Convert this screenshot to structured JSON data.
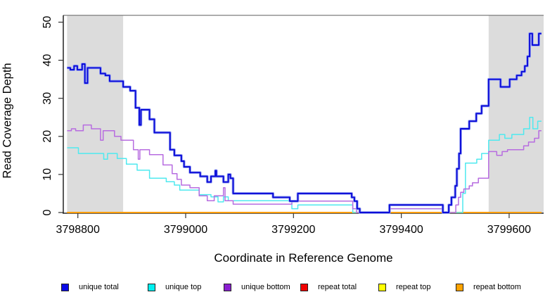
{
  "chart_data": {
    "type": "line",
    "subtype": "step-coverage",
    "title": "",
    "xlabel": "Coordinate in Reference Genome",
    "ylabel": "Read Coverage Depth",
    "xlim": [
      3798773,
      3799664
    ],
    "ylim": [
      0,
      52
    ],
    "grid": "off",
    "x_ticks": [
      3798800,
      3799000,
      3799200,
      3799400,
      3799600
    ],
    "y_ticks": [
      0,
      10,
      20,
      30,
      40,
      50
    ],
    "shaded_regions": [
      {
        "name": "masked-region-left",
        "x0": 3798780,
        "x1": 3798884,
        "color": "#dcdcdc"
      },
      {
        "name": "masked-region-right",
        "x0": 3799562,
        "x1": 3799664,
        "color": "#dcdcdc"
      }
    ],
    "legend_position": "bottom",
    "legend": [
      {
        "label": "unique total",
        "color": "#0a0ae6"
      },
      {
        "label": "unique top",
        "color": "#00f0f0"
      },
      {
        "label": "unique bottom",
        "color": "#8a1fd0"
      },
      {
        "label": "repeat total",
        "color": "#f00000"
      },
      {
        "label": "repeat top",
        "color": "#ffff00"
      },
      {
        "label": "repeat bottom",
        "color": "#ffa300"
      }
    ],
    "draw_order": [
      "repeat total",
      "repeat top",
      "repeat bottom",
      "unique top",
      "unique bottom",
      "unique total"
    ],
    "series": [
      {
        "name": "unique total",
        "color": "#0909d8",
        "halo": "#96a2f2",
        "width": 1.9,
        "points": [
          [
            3798780,
            38
          ],
          [
            3798786,
            37.5
          ],
          [
            3798793,
            38.5
          ],
          [
            3798799,
            37.5
          ],
          [
            3798808,
            39
          ],
          [
            3798813,
            34
          ],
          [
            3798818,
            38
          ],
          [
            3798842,
            36.5
          ],
          [
            3798851,
            36
          ],
          [
            3798859,
            34.5
          ],
          [
            3798884,
            33
          ],
          [
            3798897,
            32
          ],
          [
            3798907,
            27.5
          ],
          [
            3798914,
            23
          ],
          [
            3798917,
            27
          ],
          [
            3798933,
            24.5
          ],
          [
            3798942,
            21
          ],
          [
            3798971,
            16.5
          ],
          [
            3798979,
            15
          ],
          [
            3798992,
            13.5
          ],
          [
            3798997,
            12
          ],
          [
            3799008,
            10.5
          ],
          [
            3799027,
            9.5
          ],
          [
            3799040,
            8
          ],
          [
            3799047,
            9.5
          ],
          [
            3799055,
            11
          ],
          [
            3799057,
            9.5
          ],
          [
            3799070,
            8
          ],
          [
            3799079,
            10
          ],
          [
            3799083,
            9
          ],
          [
            3799088,
            5
          ],
          [
            3799162,
            4
          ],
          [
            3799193,
            3
          ],
          [
            3799208,
            5
          ],
          [
            3799308,
            4
          ],
          [
            3799313,
            3
          ],
          [
            3799318,
            1
          ],
          [
            3799323,
            0
          ],
          [
            3799378,
            2
          ],
          [
            3799477,
            0
          ],
          [
            3799488,
            2
          ],
          [
            3799493,
            4
          ],
          [
            3799500,
            7
          ],
          [
            3799503,
            11.5
          ],
          [
            3799507,
            15.5
          ],
          [
            3799510,
            22
          ],
          [
            3799526,
            24
          ],
          [
            3799539,
            26
          ],
          [
            3799549,
            28
          ],
          [
            3799562,
            35
          ],
          [
            3799584,
            33
          ],
          [
            3799601,
            35
          ],
          [
            3799614,
            36
          ],
          [
            3799623,
            37
          ],
          [
            3799629,
            38.5
          ],
          [
            3799634,
            41
          ],
          [
            3799638,
            47
          ],
          [
            3799643,
            44
          ],
          [
            3799655,
            47
          ],
          [
            3799660,
            47
          ]
        ]
      },
      {
        "name": "unique top",
        "color": "#4fe9ef",
        "width": 1.5,
        "points": [
          [
            3798780,
            17
          ],
          [
            3798801,
            15.5
          ],
          [
            3798848,
            14
          ],
          [
            3798855,
            15.5
          ],
          [
            3798873,
            14.2
          ],
          [
            3798890,
            12.7
          ],
          [
            3798910,
            11.1
          ],
          [
            3798933,
            9
          ],
          [
            3798964,
            8.1
          ],
          [
            3798979,
            7.2
          ],
          [
            3798989,
            5.9
          ],
          [
            3799025,
            4.7
          ],
          [
            3799047,
            4.1
          ],
          [
            3799060,
            2.8
          ],
          [
            3799070,
            4.1
          ],
          [
            3799079,
            3.1
          ],
          [
            3799197,
            1
          ],
          [
            3799208,
            2
          ],
          [
            3799310,
            0
          ],
          [
            3799378,
            1
          ],
          [
            3799477,
            0
          ],
          [
            3799514,
            5
          ],
          [
            3799519,
            13
          ],
          [
            3799540,
            14
          ],
          [
            3799549,
            15.5
          ],
          [
            3799562,
            19
          ],
          [
            3799582,
            20.5
          ],
          [
            3799592,
            19.5
          ],
          [
            3799605,
            20.5
          ],
          [
            3799627,
            22
          ],
          [
            3799638,
            25
          ],
          [
            3799644,
            22
          ],
          [
            3799653,
            24
          ],
          [
            3799660,
            24
          ]
        ]
      },
      {
        "name": "unique bottom",
        "color": "#b76ce0",
        "width": 1.5,
        "points": [
          [
            3798780,
            21.5
          ],
          [
            3798788,
            22
          ],
          [
            3798796,
            21.5
          ],
          [
            3798810,
            23
          ],
          [
            3798825,
            22
          ],
          [
            3798842,
            19
          ],
          [
            3798847,
            21.5
          ],
          [
            3798868,
            20
          ],
          [
            3798880,
            19
          ],
          [
            3798903,
            16.5
          ],
          [
            3798912,
            14
          ],
          [
            3798915,
            16.5
          ],
          [
            3798933,
            15.2
          ],
          [
            3798958,
            12.5
          ],
          [
            3798975,
            10.2
          ],
          [
            3798984,
            8.7
          ],
          [
            3798992,
            7.2
          ],
          [
            3799008,
            6.5
          ],
          [
            3799025,
            4.4
          ],
          [
            3799040,
            3.1
          ],
          [
            3799053,
            4.4
          ],
          [
            3799070,
            6.5
          ],
          [
            3799073,
            3.1
          ],
          [
            3799088,
            2.2
          ],
          [
            3799197,
            2.8
          ],
          [
            3799208,
            3
          ],
          [
            3799310,
            1
          ],
          [
            3799317,
            0
          ],
          [
            3799378,
            1
          ],
          [
            3799477,
            0
          ],
          [
            3799501,
            2
          ],
          [
            3799506,
            4
          ],
          [
            3799510,
            5.3
          ],
          [
            3799516,
            6.2
          ],
          [
            3799526,
            7
          ],
          [
            3799532,
            7.8
          ],
          [
            3799543,
            9
          ],
          [
            3799562,
            16
          ],
          [
            3799577,
            15
          ],
          [
            3799587,
            16
          ],
          [
            3799597,
            16.5
          ],
          [
            3799627,
            17.5
          ],
          [
            3799636,
            18.5
          ],
          [
            3799647,
            19.5
          ],
          [
            3799655,
            21.5
          ],
          [
            3799660,
            21.5
          ]
        ]
      },
      {
        "name": "repeat total",
        "color": "#e00000",
        "width": 1.5,
        "points": [
          [
            3798780,
            0
          ],
          [
            3799660,
            0
          ]
        ]
      },
      {
        "name": "repeat top",
        "color": "#ffee00",
        "width": 1.5,
        "points": [
          [
            3798780,
            0
          ],
          [
            3799660,
            0
          ]
        ]
      },
      {
        "name": "repeat bottom",
        "color": "#ff9e00",
        "width": 2,
        "points": [
          [
            3798780,
            0
          ],
          [
            3799660,
            0
          ]
        ]
      }
    ]
  },
  "legend_lefts": [
    87,
    210,
    318,
    427,
    538,
    648
  ]
}
